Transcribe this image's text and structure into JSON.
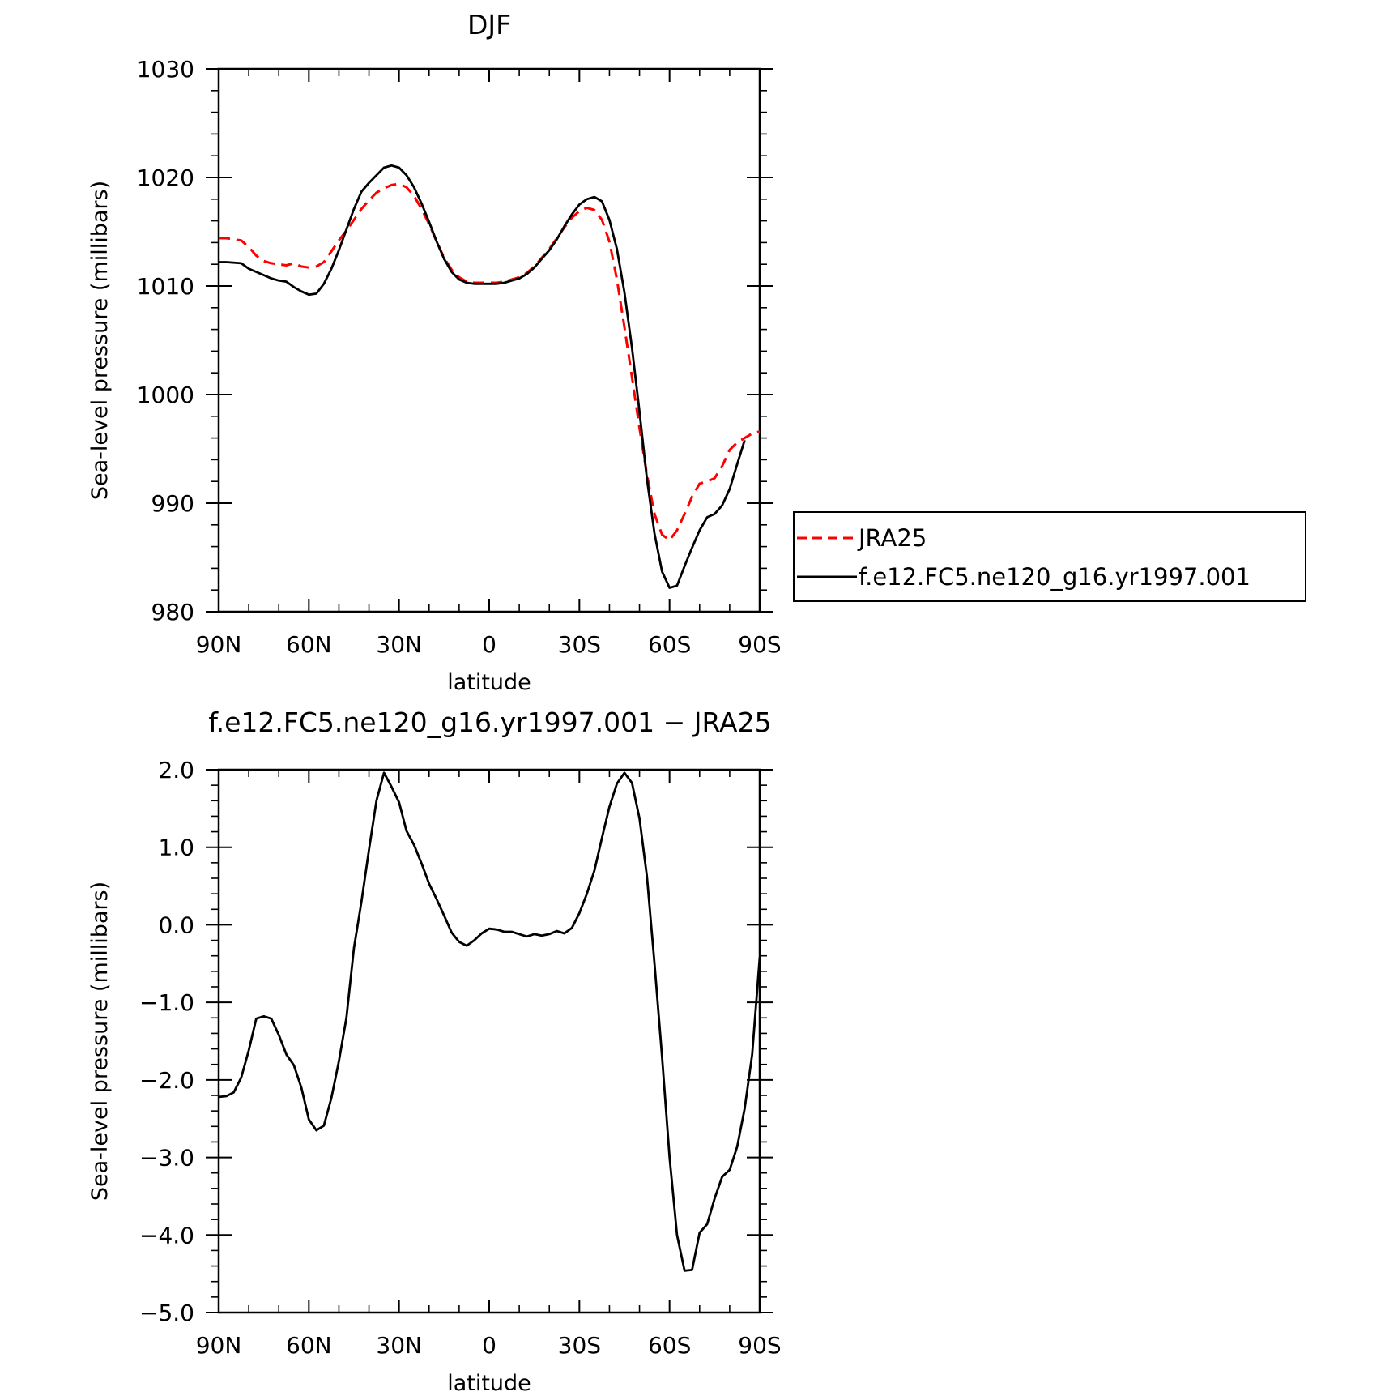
{
  "chart_data": [
    {
      "type": "line",
      "title": "DJF",
      "xlabel": "latitude",
      "ylabel": "Sea-level pressure (millibars)",
      "xlim": [
        90,
        -90
      ],
      "ylim": [
        980,
        1030
      ],
      "x_ticks": [
        90,
        60,
        30,
        0,
        -30,
        -60,
        -90
      ],
      "x_tick_labels": [
        "90N",
        "60N",
        "30N",
        "0",
        "30S",
        "60S",
        "90S"
      ],
      "y_ticks": [
        980,
        990,
        1000,
        1010,
        1020,
        1030
      ],
      "y_tick_labels": [
        "980",
        "990",
        "1000",
        "1010",
        "1020",
        "1030"
      ],
      "legend": {
        "placement": "right",
        "entries": [
          "JRA25",
          "f.e12.FC5.ne120_g16.yr1997.001"
        ]
      },
      "series": [
        {
          "name": "JRA25",
          "color": "#ff0000",
          "dash": "dashed",
          "points": [
            [
              90,
              1014.4
            ],
            [
              87.5,
              1014.4
            ],
            [
              82.5,
              1014.2
            ],
            [
              80,
              1013.6
            ],
            [
              77.5,
              1012.8
            ],
            [
              75,
              1012.3
            ],
            [
              72.5,
              1012.1
            ],
            [
              70,
              1012.0
            ],
            [
              67.5,
              1011.9
            ],
            [
              65,
              1012.1
            ],
            [
              62.5,
              1011.8
            ],
            [
              60,
              1011.7
            ],
            [
              57.5,
              1011.8
            ],
            [
              55,
              1012.2
            ],
            [
              52.5,
              1013.2
            ],
            [
              50,
              1014.2
            ],
            [
              47.5,
              1015.1
            ],
            [
              45,
              1016.1
            ],
            [
              42.5,
              1017.1
            ],
            [
              40,
              1017.9
            ],
            [
              37.5,
              1018.6
            ],
            [
              35,
              1019.0
            ],
            [
              32.5,
              1019.3
            ],
            [
              30,
              1019.4
            ],
            [
              27.5,
              1019.1
            ],
            [
              25,
              1018.3
            ],
            [
              22.5,
              1017.1
            ],
            [
              20,
              1015.7
            ],
            [
              17.5,
              1014.1
            ],
            [
              15,
              1012.6
            ],
            [
              12.5,
              1011.5
            ],
            [
              10,
              1010.8
            ],
            [
              7.5,
              1010.4
            ],
            [
              5,
              1010.3
            ],
            [
              2.5,
              1010.3
            ],
            [
              0,
              1010.3
            ],
            [
              -2.5,
              1010.3
            ],
            [
              -5,
              1010.4
            ],
            [
              -7.5,
              1010.6
            ],
            [
              -10,
              1010.8
            ],
            [
              -12.5,
              1011.2
            ],
            [
              -15,
              1011.8
            ],
            [
              -17.5,
              1012.6
            ],
            [
              -20,
              1013.4
            ],
            [
              -22.5,
              1014.4
            ],
            [
              -25,
              1015.4
            ],
            [
              -27.5,
              1016.3
            ],
            [
              -30,
              1016.9
            ],
            [
              -32.5,
              1017.2
            ],
            [
              -35,
              1017.0
            ],
            [
              -37.5,
              1016.1
            ],
            [
              -40,
              1014.1
            ],
            [
              -42.5,
              1010.6
            ],
            [
              -45,
              1006.2
            ],
            [
              -47.5,
              1001.6
            ],
            [
              -50,
              996.9
            ],
            [
              -52.5,
              992.6
            ],
            [
              -55,
              989.0
            ],
            [
              -57.5,
              987.1
            ],
            [
              -60,
              986.6
            ],
            [
              -62.5,
              987.5
            ],
            [
              -65,
              989.0
            ],
            [
              -67.5,
              990.6
            ],
            [
              -70,
              991.8
            ],
            [
              -72.5,
              992.0
            ],
            [
              -75,
              992.3
            ],
            [
              -77.5,
              993.4
            ],
            [
              -80,
              994.9
            ],
            [
              -82.5,
              995.6
            ],
            [
              -85,
              996.0
            ],
            [
              -87.5,
              996.4
            ],
            [
              -90,
              996.6
            ]
          ]
        },
        {
          "name": "f.e12.FC5.ne120_g16.yr1997.001",
          "color": "#000000",
          "dash": "solid",
          "points": [
            [
              90,
              1012.2
            ],
            [
              87.5,
              1012.2
            ],
            [
              82.5,
              1012.1
            ],
            [
              80,
              1011.6
            ],
            [
              77.5,
              1011.3
            ],
            [
              75,
              1011.0
            ],
            [
              72.5,
              1010.7
            ],
            [
              70,
              1010.5
            ],
            [
              67.5,
              1010.4
            ],
            [
              65,
              1009.9
            ],
            [
              62.5,
              1009.5
            ],
            [
              60,
              1009.2
            ],
            [
              57.5,
              1009.3
            ],
            [
              55,
              1010.2
            ],
            [
              52.5,
              1011.6
            ],
            [
              50,
              1013.3
            ],
            [
              47.5,
              1015.2
            ],
            [
              45,
              1017.1
            ],
            [
              42.5,
              1018.7
            ],
            [
              40,
              1019.5
            ],
            [
              37.5,
              1020.2
            ],
            [
              35,
              1020.9
            ],
            [
              32.5,
              1021.1
            ],
            [
              30,
              1020.9
            ],
            [
              27.5,
              1020.2
            ],
            [
              25,
              1019.1
            ],
            [
              22.5,
              1017.6
            ],
            [
              20,
              1015.9
            ],
            [
              17.5,
              1014.1
            ],
            [
              15,
              1012.5
            ],
            [
              12.5,
              1011.3
            ],
            [
              10,
              1010.6
            ],
            [
              7.5,
              1010.3
            ],
            [
              5,
              1010.2
            ],
            [
              2.5,
              1010.2
            ],
            [
              0,
              1010.2
            ],
            [
              -2.5,
              1010.2
            ],
            [
              -5,
              1010.3
            ],
            [
              -7.5,
              1010.5
            ],
            [
              -10,
              1010.7
            ],
            [
              -12.5,
              1011.1
            ],
            [
              -15,
              1011.7
            ],
            [
              -17.5,
              1012.5
            ],
            [
              -20,
              1013.3
            ],
            [
              -22.5,
              1014.3
            ],
            [
              -25,
              1015.5
            ],
            [
              -27.5,
              1016.6
            ],
            [
              -30,
              1017.5
            ],
            [
              -32.5,
              1018.0
            ],
            [
              -35,
              1018.2
            ],
            [
              -37.5,
              1017.8
            ],
            [
              -40,
              1016.1
            ],
            [
              -42.5,
              1013.4
            ],
            [
              -45,
              1009.4
            ],
            [
              -47.5,
              1004.3
            ],
            [
              -50,
              998.4
            ],
            [
              -52.5,
              992.2
            ],
            [
              -55,
              987.2
            ],
            [
              -57.5,
              983.7
            ],
            [
              -60,
              982.2
            ],
            [
              -62.5,
              982.4
            ],
            [
              -65,
              984.2
            ],
            [
              -67.5,
              985.9
            ],
            [
              -70,
              987.5
            ],
            [
              -72.5,
              988.7
            ],
            [
              -75,
              989.0
            ],
            [
              -77.5,
              989.8
            ],
            [
              -80,
              991.3
            ],
            [
              -82.5,
              993.6
            ],
            [
              -85,
              995.8
            ]
          ]
        }
      ]
    },
    {
      "type": "line",
      "title": "f.e12.FC5.ne120_g16.yr1997.001 - JRA25",
      "xlabel": "latitude",
      "ylabel": "Sea-level pressure (millibars)",
      "xlim": [
        90,
        -90
      ],
      "ylim": [
        -5,
        2
      ],
      "x_ticks": [
        90,
        60,
        30,
        0,
        -30,
        -60,
        -90
      ],
      "x_tick_labels": [
        "90N",
        "60N",
        "30N",
        "0",
        "30S",
        "60S",
        "90S"
      ],
      "y_ticks": [
        -5,
        -4,
        -3,
        -2,
        -1,
        0,
        1,
        2
      ],
      "y_tick_labels": [
        "-5.0",
        "-4.0",
        "-3.0",
        "-2.0",
        "-1.0",
        "0.0",
        "1.0",
        "2.0"
      ],
      "series": [
        {
          "color": "#000000",
          "dash": "solid",
          "points": [
            [
              90,
              -2.22
            ],
            [
              87.5,
              -2.21
            ],
            [
              85,
              -2.16
            ],
            [
              82.5,
              -1.97
            ],
            [
              80,
              -1.62
            ],
            [
              77.5,
              -1.21
            ],
            [
              75,
              -1.18
            ],
            [
              72.5,
              -1.21
            ],
            [
              70,
              -1.42
            ],
            [
              67.5,
              -1.67
            ],
            [
              65,
              -1.81
            ],
            [
              62.5,
              -2.1
            ],
            [
              60,
              -2.51
            ],
            [
              57.5,
              -2.65
            ],
            [
              55,
              -2.59
            ],
            [
              52.5,
              -2.23
            ],
            [
              50,
              -1.76
            ],
            [
              47.5,
              -1.2
            ],
            [
              45,
              -0.3
            ],
            [
              42.5,
              0.3
            ],
            [
              40,
              0.97
            ],
            [
              37.5,
              1.6
            ],
            [
              35,
              1.96
            ],
            [
              32.5,
              1.78
            ],
            [
              30,
              1.58
            ],
            [
              27.5,
              1.21
            ],
            [
              25,
              1.03
            ],
            [
              22.5,
              0.79
            ],
            [
              20,
              0.53
            ],
            [
              17.5,
              0.33
            ],
            [
              15,
              0.12
            ],
            [
              12.5,
              -0.1
            ],
            [
              10,
              -0.22
            ],
            [
              7.5,
              -0.27
            ],
            [
              5,
              -0.2
            ],
            [
              2.5,
              -0.11
            ],
            [
              0,
              -0.05
            ],
            [
              -2.5,
              -0.06
            ],
            [
              -5,
              -0.09
            ],
            [
              -7.5,
              -0.09
            ],
            [
              -10,
              -0.12
            ],
            [
              -12.5,
              -0.15
            ],
            [
              -15,
              -0.12
            ],
            [
              -17.5,
              -0.14
            ],
            [
              -20,
              -0.12
            ],
            [
              -22.5,
              -0.08
            ],
            [
              -25,
              -0.11
            ],
            [
              -27.5,
              -0.04
            ],
            [
              -30,
              0.15
            ],
            [
              -32.5,
              0.4
            ],
            [
              -35,
              0.7
            ],
            [
              -37.5,
              1.12
            ],
            [
              -40,
              1.52
            ],
            [
              -42.5,
              1.82
            ],
            [
              -45,
              1.96
            ],
            [
              -47.5,
              1.83
            ],
            [
              -50,
              1.37
            ],
            [
              -52.5,
              0.62
            ],
            [
              -55,
              -0.5
            ],
            [
              -57.5,
              -1.7
            ],
            [
              -60,
              -3.0
            ],
            [
              -62.5,
              -4.0
            ],
            [
              -65,
              -4.46
            ],
            [
              -67.5,
              -4.45
            ],
            [
              -70,
              -3.97
            ],
            [
              -72.5,
              -3.86
            ],
            [
              -75,
              -3.53
            ],
            [
              -77.5,
              -3.25
            ],
            [
              -80,
              -3.16
            ],
            [
              -82.5,
              -2.86
            ],
            [
              -85,
              -2.37
            ],
            [
              -87.5,
              -1.67
            ],
            [
              -90,
              -0.42
            ]
          ]
        }
      ]
    }
  ]
}
